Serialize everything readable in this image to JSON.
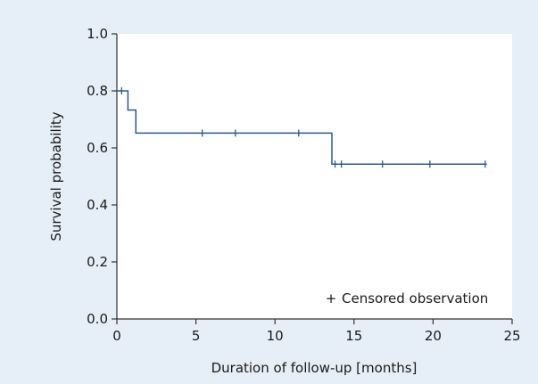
{
  "chart_data": {
    "type": "line",
    "subtype": "kaplan-meier survival curve",
    "xlabel": "Duration of follow-up [months]",
    "ylabel": "Survival probability",
    "xlim": [
      0,
      25
    ],
    "ylim": [
      0.0,
      1.0
    ],
    "x_ticks": [
      "0",
      "5",
      "10",
      "15",
      "20",
      "25"
    ],
    "y_ticks": [
      "0.0",
      "0.2",
      "0.4",
      "0.6",
      "0.8",
      "1.0"
    ],
    "grid": false,
    "line_color": "#2a5a8c",
    "plot_background": "#ffffff",
    "figure_background": "#e6eff7",
    "steps": [
      {
        "x": 0,
        "y": 0.8
      },
      {
        "x": 0.7,
        "y": 0.733
      },
      {
        "x": 1.2,
        "y": 0.652
      },
      {
        "x": 13.6,
        "y": 0.543
      },
      {
        "x": 23.4,
        "y": 0.543
      }
    ],
    "censored": [
      {
        "x": 0.3,
        "y": 0.8
      },
      {
        "x": 5.4,
        "y": 0.652
      },
      {
        "x": 7.5,
        "y": 0.652
      },
      {
        "x": 11.5,
        "y": 0.652
      },
      {
        "x": 13.8,
        "y": 0.543
      },
      {
        "x": 14.2,
        "y": 0.543
      },
      {
        "x": 16.8,
        "y": 0.543
      },
      {
        "x": 19.8,
        "y": 0.543
      },
      {
        "x": 23.3,
        "y": 0.543
      }
    ],
    "legend": {
      "marker": "+",
      "label": "Censored observation",
      "position": "bottom-right"
    }
  }
}
